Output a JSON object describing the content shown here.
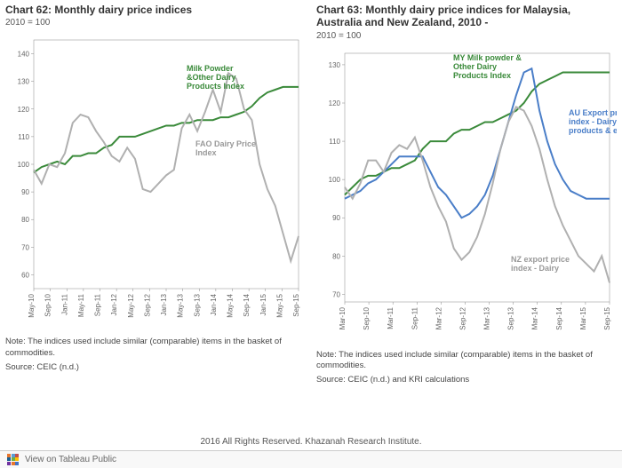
{
  "chart_left": {
    "type": "line",
    "title": "Chart 62: Monthly dairy price indices",
    "subtitle_line2": "2010 = 100",
    "plot": {
      "ylim": [
        55,
        145
      ],
      "ytick_step": 10,
      "yticks": [
        60,
        70,
        80,
        90,
        100,
        110,
        120,
        130,
        140
      ],
      "x_labels": [
        "May-10",
        "Sep-10",
        "Jan-11",
        "May-11",
        "Sep-11",
        "Jan-12",
        "May-12",
        "Sep-12",
        "Jan-13",
        "May-13",
        "Sep-13",
        "Jan-14",
        "May-14",
        "Sep-14",
        "Jan-15",
        "May-15",
        "Sep-15"
      ],
      "background_color": "#ffffff",
      "axis_color": "#888888",
      "label_color": "#666666"
    },
    "series": [
      {
        "name": "Milk Powder &Other Dairy Products Index",
        "color": "#3a8a3a",
        "label_color": "#3a8a3a",
        "label_x": 200,
        "label_y": 45,
        "stroke_width": 2,
        "values": [
          97,
          99,
          100,
          101,
          100,
          103,
          103,
          104,
          104,
          106,
          107,
          110,
          110,
          110,
          111,
          112,
          113,
          114,
          114,
          115,
          115,
          116,
          116,
          116,
          117,
          117,
          118,
          119,
          121,
          124,
          126,
          127,
          128,
          128,
          128
        ]
      },
      {
        "name": "FAO Dairy Price Index",
        "color": "#b0b0b0",
        "label_color": "#999999",
        "label_x": 210,
        "label_y": 130,
        "stroke_width": 2,
        "values": [
          98,
          93,
          100,
          99,
          104,
          115,
          118,
          117,
          112,
          108,
          103,
          101,
          106,
          102,
          91,
          90,
          93,
          96,
          98,
          113,
          118,
          112,
          119,
          127,
          119,
          133,
          131,
          120,
          116,
          100,
          91,
          85,
          75,
          65,
          74
        ]
      }
    ],
    "note": "Note: The indices used include similar (comparable) items in the basket of commodities.",
    "source": "Source: CEIC (n.d.)"
  },
  "chart_right": {
    "type": "line",
    "title": "Chart 63: Monthly dairy price indices for Malaysia, Australia and New Zealand, 2010 -",
    "subtitle_line2": "2010 = 100",
    "plot": {
      "ylim": [
        68,
        133
      ],
      "ytick_step": 10,
      "yticks": [
        70,
        80,
        90,
        100,
        110,
        120,
        130
      ],
      "x_labels": [
        "Mar-10",
        "Sep-10",
        "Mar-11",
        "Sep-11",
        "Mar-12",
        "Sep-12",
        "Mar-13",
        "Sep-13",
        "Mar-14",
        "Sep-14",
        "Mar-15",
        "Sep-15"
      ],
      "background_color": "#ffffff",
      "axis_color": "#888888",
      "label_color": "#666666"
    },
    "series": [
      {
        "name": "MY Milk powder & Other Dairy Products Index",
        "color": "#3a8a3a",
        "label_color": "#3a8a3a",
        "label_x": 150,
        "label_y": 18,
        "stroke_width": 2,
        "values": [
          96,
          98,
          100,
          101,
          101,
          102,
          103,
          103,
          104,
          105,
          108,
          110,
          110,
          110,
          112,
          113,
          113,
          114,
          115,
          115,
          116,
          117,
          118,
          120,
          123,
          125,
          126,
          127,
          128,
          128,
          128,
          128,
          128,
          128,
          128
        ]
      },
      {
        "name": "AU Export price index - Dairy products & eggs",
        "color": "#4a7ec8",
        "label_color": "#4a7ec8",
        "label_x": 280,
        "label_y": 80,
        "stroke_width": 2,
        "values": [
          95,
          96,
          97,
          99,
          100,
          102,
          104,
          106,
          106,
          106,
          106,
          102,
          98,
          96,
          93,
          90,
          91,
          93,
          96,
          101,
          108,
          115,
          122,
          128,
          129,
          118,
          110,
          104,
          100,
          97,
          96,
          95,
          95,
          95,
          95
        ]
      },
      {
        "name": "NZ export price index - Dairy",
        "color": "#b0b0b0",
        "label_color": "#999999",
        "label_x": 215,
        "label_y": 245,
        "stroke_width": 2,
        "values": [
          98,
          95,
          99,
          105,
          105,
          102,
          107,
          109,
          108,
          111,
          105,
          98,
          93,
          89,
          82,
          79,
          81,
          85,
          91,
          99,
          108,
          115,
          119,
          118,
          114,
          108,
          100,
          93,
          88,
          84,
          80,
          78,
          76,
          80,
          73
        ]
      }
    ],
    "note": "Note: The indices used include similar (comparable) items in the basket of commodities.",
    "source": "Source: CEIC (n.d.) and KRI calculations"
  },
  "footer_text": "2016 All Rights Reserved. Khazanah Research Institute.",
  "tableau_link": "View on Tableau Public",
  "tableau_colors": [
    "#e8762d",
    "#5a9bd4",
    "#c0504d",
    "#1a6091",
    "#70ad47",
    "#ffc000",
    "#7030a0",
    "#e8762d",
    "#4472c4"
  ]
}
